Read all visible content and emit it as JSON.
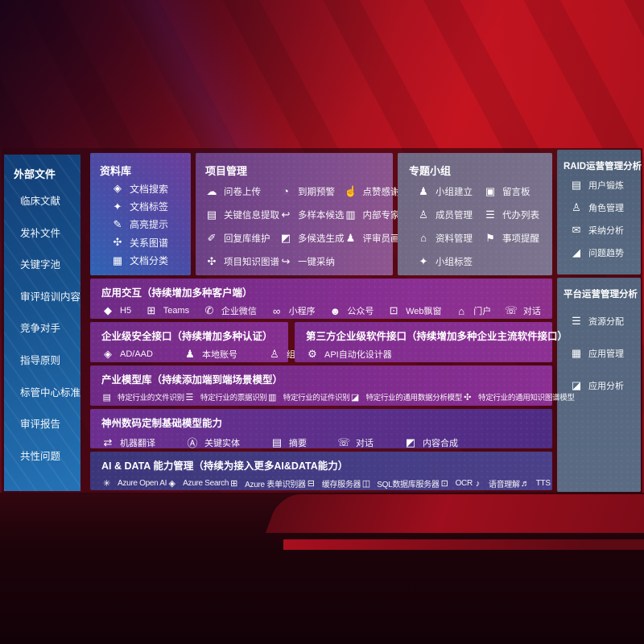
{
  "colors": {
    "background_red": "#b8101f",
    "background_dark": "#1d030a",
    "sidebar_blue": "#2473b6",
    "library_purple_blue": "#4d4aa4",
    "project_mauve": "#7c4c8d",
    "group_gray_purple": "#7d7490",
    "analytics_slate": "#586a82",
    "band_purple": "#8a2f93",
    "band_indigo": "#453d85",
    "text_white": "#ffffff"
  },
  "sidebar": {
    "title": "外部文件",
    "items": [
      {
        "label": "临床文献"
      },
      {
        "label": "发补文件"
      },
      {
        "label": "关键字池"
      },
      {
        "label": "审评培训内容"
      },
      {
        "label": "竞争对手"
      },
      {
        "label": "指导原则"
      },
      {
        "label": "标管中心标准"
      },
      {
        "label": "审评报告"
      },
      {
        "label": "共性问题"
      }
    ]
  },
  "panels": {
    "library": {
      "title": "资料库",
      "items": [
        {
          "label": "文档搜索",
          "icon": "◈",
          "icon_name": "doc-search-icon"
        },
        {
          "label": "文档标签",
          "icon": "✦",
          "icon_name": "doc-tag-icon"
        },
        {
          "label": "高亮提示",
          "icon": "✎",
          "icon_name": "highlight-pen-icon"
        },
        {
          "label": "关系图谱",
          "icon": "✣",
          "icon_name": "relation-graph-icon"
        },
        {
          "label": "文档分类",
          "icon": "▦",
          "icon_name": "doc-classify-icon"
        }
      ]
    },
    "project": {
      "title": "项目管理",
      "items": [
        {
          "label": "问卷上传",
          "icon": "☁",
          "icon_name": "cloud-upload-icon"
        },
        {
          "label": "到期预警",
          "icon": "◔",
          "icon_name": "alarm-icon"
        },
        {
          "label": "点赞感谢",
          "icon": "☝",
          "icon_name": "thumbs-up-icon"
        },
        {
          "label": "关键信息提取",
          "icon": "▤",
          "icon_name": "info-extract-icon"
        },
        {
          "label": "多样本候选",
          "icon": "↩",
          "icon_name": "multi-sample-icon"
        },
        {
          "label": "内部专家排名",
          "icon": "▥",
          "icon_name": "expert-ranking-icon"
        },
        {
          "label": "回复库维护",
          "icon": "✐",
          "icon_name": "reply-maintain-icon"
        },
        {
          "label": "多候选生成",
          "icon": "◩",
          "icon_name": "multi-candidate-icon"
        },
        {
          "label": "评审员画像",
          "icon": "♟",
          "icon_name": "reviewer-profile-icon"
        },
        {
          "label": "项目知识图谱",
          "icon": "✣",
          "icon_name": "knowledge-graph-icon"
        },
        {
          "label": "一键采纳",
          "icon": "↪",
          "icon_name": "one-click-adopt-icon"
        }
      ]
    },
    "group": {
      "title": "专题小组",
      "items": [
        {
          "label": "小组建立",
          "icon": "♟",
          "icon_name": "group-create-icon"
        },
        {
          "label": "留言板",
          "icon": "▣",
          "icon_name": "bbs-board-icon"
        },
        {
          "label": "成员管理",
          "icon": "♙",
          "icon_name": "member-manage-icon"
        },
        {
          "label": "代办列表",
          "icon": "☰",
          "icon_name": "todo-list-icon"
        },
        {
          "label": "资料管理",
          "icon": "⌂",
          "icon_name": "material-manage-icon"
        },
        {
          "label": "事项提醒",
          "icon": "⚑",
          "icon_name": "reminder-bell-icon"
        },
        {
          "label": "小组标签",
          "icon": "✦",
          "icon_name": "group-tag-icon"
        }
      ]
    },
    "raid": {
      "title": "RAID运营管理分析",
      "items": [
        {
          "label": "用户锻炼",
          "icon": "▤",
          "icon_name": "user-card-icon"
        },
        {
          "label": "角色管理",
          "icon": "♙",
          "icon_name": "role-manage-icon"
        },
        {
          "label": "采纳分析",
          "icon": "✉",
          "icon_name": "qa-bubble-icon"
        },
        {
          "label": "问题趋势",
          "icon": "◢",
          "icon_name": "trend-chart-icon"
        }
      ]
    },
    "platform": {
      "title": "平台运营管理分析",
      "items": [
        {
          "label": "资源分配",
          "icon": "☰",
          "icon_name": "resource-list-icon"
        },
        {
          "label": "应用管理",
          "icon": "▦",
          "icon_name": "app-grid-icon"
        },
        {
          "label": "应用分析",
          "icon": "◪",
          "icon_name": "app-analysis-icon"
        }
      ]
    }
  },
  "bands": {
    "interaction": {
      "title": "应用交互（持续增加多种客户端）",
      "items": [
        {
          "label": "H5",
          "icon": "◆",
          "icon_name": "h5-icon"
        },
        {
          "label": "Teams",
          "icon": "⊞",
          "icon_name": "teams-icon"
        },
        {
          "label": "企业微信",
          "icon": "✆",
          "icon_name": "wecom-icon"
        },
        {
          "label": "小程序",
          "icon": "∞",
          "icon_name": "miniprogram-icon"
        },
        {
          "label": "公众号",
          "icon": "☻",
          "icon_name": "official-account-icon"
        },
        {
          "label": "Web飘窗",
          "icon": "⊡",
          "icon_name": "web-popup-icon"
        },
        {
          "label": "门户",
          "icon": "⌂",
          "icon_name": "portal-icon"
        },
        {
          "label": "对话",
          "icon": "☏",
          "icon_name": "dialog-icon"
        }
      ]
    },
    "security": {
      "title": "企业级安全接口（持续增加多种认证）",
      "items": [
        {
          "label": "AD/AAD",
          "icon": "◈",
          "icon_name": "ad-aad-icon"
        },
        {
          "label": "本地账号",
          "icon": "♟",
          "icon_name": "local-account-icon"
        },
        {
          "label": "组织定义",
          "icon": "♙",
          "icon_name": "org-define-icon"
        }
      ]
    },
    "third_party": {
      "title": "第三方企业级软件接口（持续增加多种企业主流软件接口）",
      "items": [
        {
          "label": "API自动化设计器",
          "icon": "⚙",
          "icon_name": "api-designer-gear-icon"
        }
      ]
    },
    "industry_models": {
      "title": "产业模型库（持续添加端到端场景模型）",
      "items": [
        {
          "label": "特定行业的文件识别",
          "icon": "▤",
          "icon_name": "file-recognition-icon"
        },
        {
          "label": "特定行业的票据识别",
          "icon": "☰",
          "icon_name": "invoice-recognition-icon"
        },
        {
          "label": "特定行业的证件识别",
          "icon": "▥",
          "icon_name": "id-recognition-icon"
        },
        {
          "label": "特定行业的通用数据分析模型",
          "icon": "◪",
          "icon_name": "data-analysis-model-icon"
        },
        {
          "label": "特定行业的通用知识图谱模型",
          "icon": "✣",
          "icon_name": "knowledge-graph-model-icon"
        }
      ]
    },
    "base_models": {
      "title": "神州数码定制基础模型能力",
      "items": [
        {
          "label": "机器翻译",
          "icon": "⇄",
          "icon_name": "machine-translate-icon"
        },
        {
          "label": "关键实体",
          "icon": "Ⓐ",
          "icon_name": "key-entity-icon"
        },
        {
          "label": "摘要",
          "icon": "▤",
          "icon_name": "summary-icon"
        },
        {
          "label": "对话",
          "icon": "☏",
          "icon_name": "dialogue-icon"
        },
        {
          "label": "内容合成",
          "icon": "◩",
          "icon_name": "content-compose-icon"
        }
      ]
    },
    "ai_data": {
      "title": "AI & DATA 能力管理（持续为接入更多AI&DATA能力）",
      "items": [
        {
          "label": "Azure Open AI",
          "icon": "✳",
          "icon_name": "openai-icon"
        },
        {
          "label": "Azure Search",
          "icon": "◈",
          "icon_name": "azure-search-icon"
        },
        {
          "label": "Azure 表单识别器",
          "icon": "⊞",
          "icon_name": "form-recognizer-icon"
        },
        {
          "label": "缓存服务器",
          "icon": "⊟",
          "icon_name": "cache-server-icon"
        },
        {
          "label": "SQL数据库服务器",
          "icon": "◫",
          "icon_name": "sql-database-icon"
        },
        {
          "label": "OCR",
          "icon": "⊡",
          "icon_name": "ocr-icon"
        },
        {
          "label": "语音理解",
          "icon": "♪",
          "icon_name": "speech-understand-icon"
        },
        {
          "label": "TTS",
          "icon": "♬",
          "icon_name": "tts-icon"
        }
      ]
    }
  }
}
